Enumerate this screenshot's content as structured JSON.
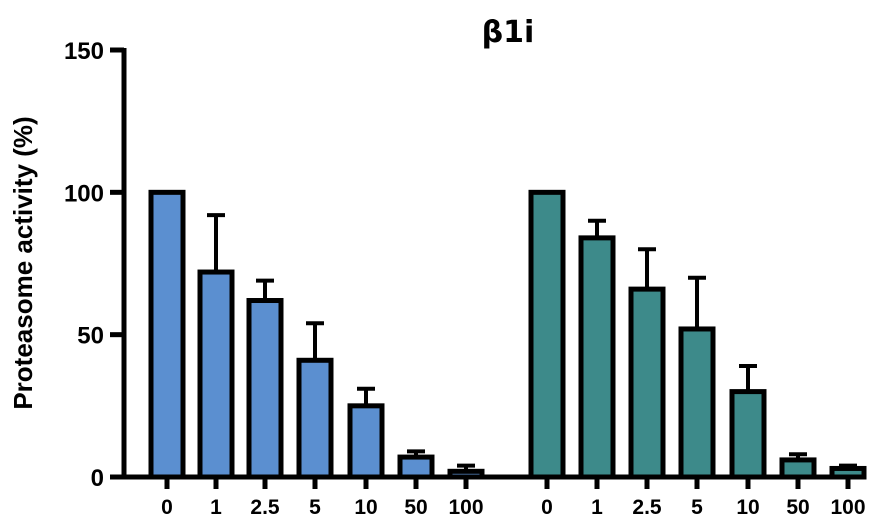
{
  "chart_data": {
    "type": "bar",
    "title": "β1i",
    "xlabel": "",
    "ylabel": "Proteasome activity (%)",
    "ylim": [
      0,
      150
    ],
    "yticks": [
      0,
      50,
      100,
      150
    ],
    "grid": false,
    "legend": "none",
    "groups": [
      {
        "color": "#5b8fd0",
        "categories": [
          "0",
          "1",
          "2.5",
          "5",
          "10",
          "50",
          "100"
        ],
        "values": [
          100,
          72,
          62,
          41,
          25,
          7,
          2
        ],
        "errors": [
          0,
          20,
          7,
          13,
          6,
          2,
          2
        ]
      },
      {
        "color": "#3d8a8a",
        "categories": [
          "0",
          "1",
          "2.5",
          "5",
          "10",
          "50",
          "100"
        ],
        "values": [
          100,
          84,
          66,
          52,
          30,
          6,
          3
        ],
        "errors": [
          0,
          6,
          14,
          18,
          9,
          2,
          1
        ]
      }
    ]
  }
}
